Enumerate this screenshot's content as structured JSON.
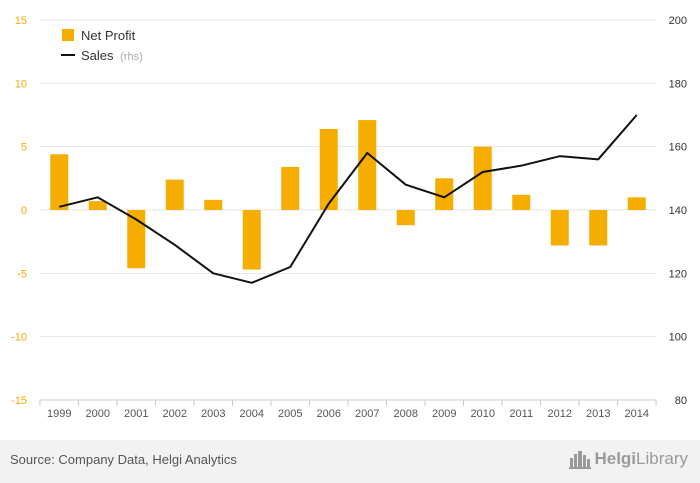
{
  "chart_data": {
    "type": "bar+line",
    "categories": [
      "1999",
      "2000",
      "2001",
      "2002",
      "2003",
      "2004",
      "2005",
      "2006",
      "2007",
      "2008",
      "2009",
      "2010",
      "2011",
      "2012",
      "2013",
      "2014"
    ],
    "series": [
      {
        "name": "Net Profit",
        "type": "bar",
        "axis": "left",
        "color": "#f5ae00",
        "values": [
          4.4,
          0.7,
          -4.6,
          2.4,
          0.8,
          -4.7,
          3.4,
          6.4,
          7.1,
          -1.2,
          2.5,
          5.0,
          1.2,
          -2.8,
          -2.8,
          1.0
        ]
      },
      {
        "name": "Sales",
        "unit": "(rhs)",
        "type": "line",
        "axis": "right",
        "color": "#111111",
        "values": [
          141,
          144,
          137,
          129,
          120,
          117,
          122,
          142,
          158,
          148,
          144,
          152,
          154,
          157,
          156,
          170
        ]
      }
    ],
    "y_left": {
      "min": -15,
      "max": 15,
      "ticks": [
        -15,
        -10,
        -5,
        0,
        5,
        10,
        15
      ]
    },
    "y_right": {
      "min": 80,
      "max": 200,
      "ticks": [
        80,
        100,
        120,
        140,
        160,
        180,
        200
      ]
    },
    "grid": true,
    "legend_position": "top-left"
  },
  "footer": {
    "source": "Source: Company Data, Helgi Analytics",
    "logo_part1": "Helgi",
    "logo_part2": "Library",
    "logo_icon": "city-skyline-icon"
  }
}
